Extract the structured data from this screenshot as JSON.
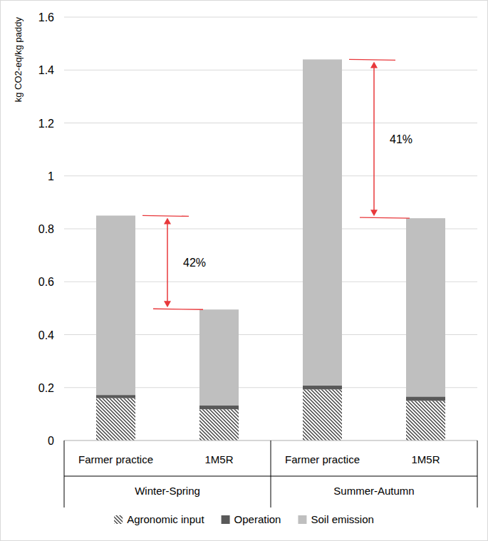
{
  "chart_data": {
    "type": "bar",
    "stacked": true,
    "ylabel": "kg CO2-eq/kg paddy",
    "categories": [
      "Farmer practice",
      "1M5R",
      "Farmer practice",
      "1M5R"
    ],
    "groups": [
      "Winter-Spring",
      "Summer-Autumn"
    ],
    "series": [
      {
        "name": "Agronomic input",
        "color": "#404040",
        "values": [
          0.16,
          0.118,
          0.193,
          0.15
        ]
      },
      {
        "name": "Operation",
        "color": "#595959",
        "values": [
          0.012,
          0.014,
          0.015,
          0.016
        ]
      },
      {
        "name": "Soil emission",
        "color": "#bfbfbf",
        "values": [
          0.678,
          0.363,
          1.232,
          0.674
        ]
      }
    ],
    "annotations": [
      {
        "text": "42%"
      },
      {
        "text": "41%"
      }
    ],
    "ylim": [
      0,
      1.6
    ],
    "yticks": [
      0,
      0.2,
      0.4,
      0.6,
      0.8,
      1,
      1.2,
      1.4,
      1.6
    ],
    "grid": true,
    "legend": "bottom"
  }
}
